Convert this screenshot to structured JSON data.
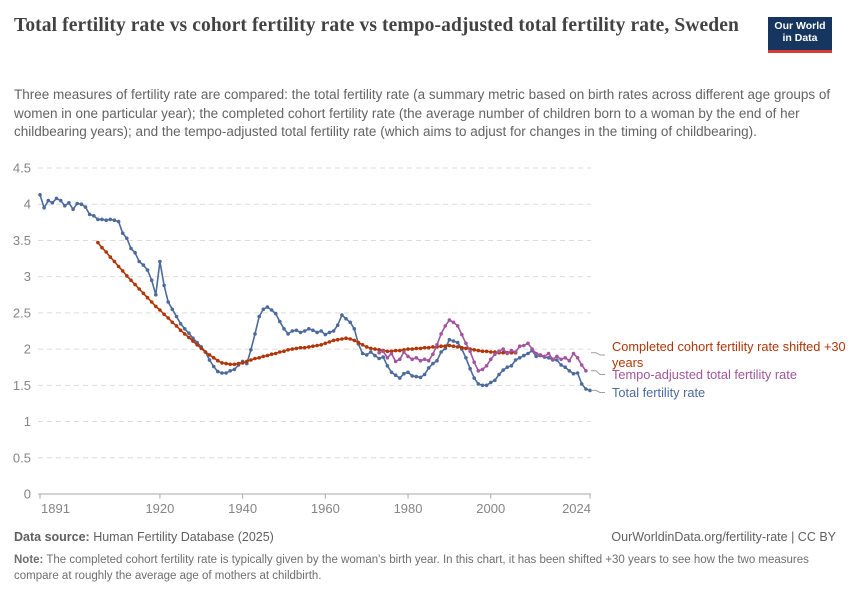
{
  "header": {
    "title": "Total fertility rate vs cohort fertility rate vs tempo-adjusted total fertility rate, Sweden",
    "subtitle": "Three measures of fertility rate are compared: the total fertility rate (a summary metric based on birth rates across different age groups of women in one particular year); the completed cohort fertility rate (the average number of children born to a woman by the end of her childbearing years); and the tempo-adjusted total fertility rate (which aims to adjust for changes in the timing of childbearing).",
    "logo_line1": "Our World",
    "logo_line2": "in Data",
    "logo_bg_color": "#16355F",
    "logo_bar_color": "#D73C34"
  },
  "footer": {
    "datasource_label": "Data source:",
    "datasource_value": " Human Fertility Database (2025)",
    "attribution": "OurWorldinData.org/fertility-rate | CC BY",
    "note_label": "Note:",
    "note_value": " The completed cohort fertility rate is typically given by the woman's birth year. In this chart, it has been shifted +30 years to see how the two measures compare at roughly the average age of mothers at childbirth."
  },
  "chart_data": {
    "type": "line",
    "title": "Total fertility rate vs cohort fertility rate vs tempo-adjusted total fertility rate, Sweden",
    "xlabel": "",
    "ylabel": "",
    "xlim": [
      1891,
      2024
    ],
    "ylim": [
      0,
      4.5
    ],
    "x_ticks": [
      1891,
      1920,
      1940,
      1960,
      1980,
      2000,
      2024
    ],
    "y_ticks": [
      0,
      0.5,
      1,
      1.5,
      2,
      2.5,
      3,
      3.5,
      4,
      4.5
    ],
    "grid": "horizontal dashed",
    "grid_color": "#dcdcdc",
    "axis_color": "#a8a8a8",
    "tick_label_color": "#858585",
    "legend_position": "line-end labels right of plot",
    "legend_order": [
      "Completed cohort fertility rate shifted +30 years",
      "Tempo-adjusted total fertility rate",
      "Total fertility rate"
    ],
    "series": [
      {
        "name": "Total fertility rate",
        "color": "#4C6A9C",
        "start_year": 1891,
        "values": [
          4.13,
          3.95,
          4.05,
          4.02,
          4.08,
          4.05,
          3.98,
          4.02,
          3.93,
          4.01,
          4.0,
          3.96,
          3.86,
          3.84,
          3.79,
          3.79,
          3.78,
          3.79,
          3.78,
          3.76,
          3.6,
          3.53,
          3.39,
          3.33,
          3.21,
          3.16,
          3.09,
          2.95,
          2.75,
          3.21,
          2.88,
          2.65,
          2.55,
          2.45,
          2.35,
          2.28,
          2.22,
          2.15,
          2.09,
          2.03,
          1.96,
          1.85,
          1.76,
          1.69,
          1.67,
          1.67,
          1.7,
          1.72,
          1.78,
          1.83,
          1.8,
          1.99,
          2.21,
          2.45,
          2.55,
          2.58,
          2.54,
          2.49,
          2.38,
          2.28,
          2.21,
          2.25,
          2.26,
          2.23,
          2.25,
          2.28,
          2.26,
          2.23,
          2.25,
          2.2,
          2.23,
          2.25,
          2.33,
          2.47,
          2.42,
          2.37,
          2.28,
          2.07,
          1.94,
          1.92,
          1.96,
          1.91,
          1.87,
          1.89,
          1.77,
          1.68,
          1.64,
          1.6,
          1.66,
          1.68,
          1.63,
          1.62,
          1.61,
          1.65,
          1.74,
          1.8,
          1.84,
          1.96,
          2.01,
          2.13,
          2.11,
          2.09,
          2.0,
          1.88,
          1.73,
          1.6,
          1.52,
          1.5,
          1.5,
          1.54,
          1.57,
          1.65,
          1.71,
          1.75,
          1.77,
          1.85,
          1.88,
          1.91,
          1.94,
          1.98,
          1.9,
          1.91,
          1.89,
          1.88,
          1.85,
          1.85,
          1.78,
          1.75,
          1.7,
          1.66,
          1.67,
          1.52,
          1.45,
          1.43
        ]
      },
      {
        "name": "Completed cohort fertility rate shifted +30 years",
        "color": "#B13507",
        "start_year": 1905,
        "values": [
          3.47,
          3.4,
          3.34,
          3.27,
          3.21,
          3.14,
          3.08,
          3.01,
          2.95,
          2.89,
          2.83,
          2.77,
          2.71,
          2.65,
          2.59,
          2.54,
          2.48,
          2.43,
          2.37,
          2.32,
          2.26,
          2.21,
          2.16,
          2.11,
          2.06,
          2.01,
          1.96,
          1.92,
          1.88,
          1.84,
          1.81,
          1.8,
          1.79,
          1.79,
          1.8,
          1.81,
          1.83,
          1.85,
          1.87,
          1.88,
          1.9,
          1.91,
          1.93,
          1.94,
          1.96,
          1.97,
          1.99,
          2.0,
          2.01,
          2.02,
          2.02,
          2.03,
          2.04,
          2.05,
          2.06,
          2.08,
          2.1,
          2.12,
          2.13,
          2.14,
          2.15,
          2.14,
          2.12,
          2.09,
          2.06,
          2.03,
          2.01,
          2.0,
          1.99,
          1.98,
          1.97,
          1.97,
          1.98,
          1.98,
          1.99,
          2.0,
          2.0,
          2.01,
          2.01,
          2.02,
          2.02,
          2.03,
          2.03,
          2.04,
          2.04,
          2.05,
          2.04,
          2.03,
          2.02,
          2.01,
          2.0,
          1.99,
          1.98,
          1.97,
          1.97,
          1.96,
          1.96,
          1.95,
          1.95,
          1.95,
          1.95,
          1.95
        ]
      },
      {
        "name": "Tempo-adjusted total fertility rate",
        "color": "#A2559C",
        "start_year": 1973,
        "values": [
          1.95,
          1.97,
          1.88,
          1.94,
          1.83,
          1.86,
          1.96,
          1.9,
          1.86,
          1.88,
          1.84,
          1.86,
          1.84,
          1.93,
          2.06,
          2.21,
          2.32,
          2.4,
          2.37,
          2.32,
          2.2,
          2.08,
          1.97,
          1.82,
          1.7,
          1.72,
          1.77,
          1.86,
          1.93,
          1.97,
          2.0,
          1.94,
          1.98,
          1.96,
          2.04,
          2.05,
          2.08,
          2.0,
          1.94,
          1.92,
          1.9,
          1.94,
          1.86,
          1.9,
          1.86,
          1.88,
          1.84,
          1.94,
          1.88,
          1.78,
          1.7
        ]
      }
    ]
  }
}
